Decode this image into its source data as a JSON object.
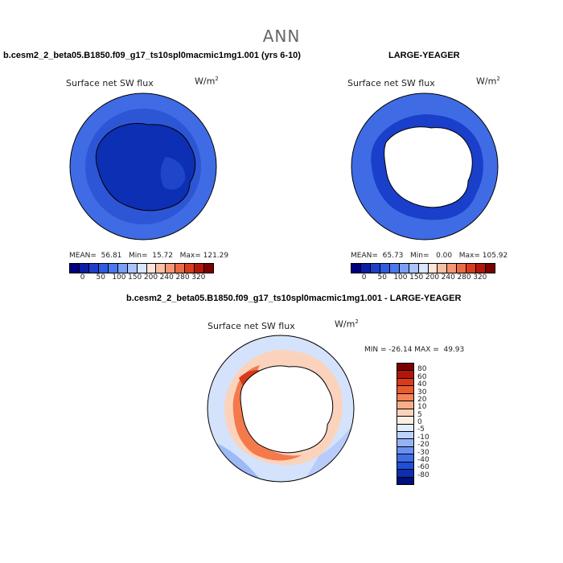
{
  "title": "ANN",
  "panels": [
    {
      "case": "b.cesm2_2_beta05.B1850.f09_g17_ts10spl0macmic1mg1.001 (yrs 6-10)",
      "variable": "Surface net SW flux",
      "units_base": "W/m",
      "units_exp": "2",
      "mean_label": "MEAN=",
      "mean": "56.81",
      "min_label": "Min=",
      "min": "15.72",
      "max_label": "Max=",
      "max": "121.29"
    },
    {
      "case": "LARGE-YEAGER",
      "variable": "Surface net SW flux",
      "units_base": "W/m",
      "units_exp": "2",
      "mean_label": "MEAN=",
      "mean": "65.73",
      "min_label": "Min=",
      "min": "0.00",
      "max_label": "Max=",
      "max": "105.92"
    },
    {
      "case": "b.cesm2_2_beta05.B1850.f09_g17_ts10spl0macmic1mg1.001 - LARGE-YEAGER",
      "variable": "Surface net SW flux",
      "units_base": "W/m",
      "units_exp": "2",
      "minmax": "MIN = -26.14 MAX =  49.93"
    }
  ],
  "colorbar_top": {
    "colors": [
      "#00007f",
      "#0b1fa6",
      "#1e3fc8",
      "#2f5be0",
      "#4a78ee",
      "#7a9ff5",
      "#a9c4f9",
      "#d9e6fc",
      "#fde4d8",
      "#f9bfa4",
      "#f39774",
      "#ea6a44",
      "#d83a1c",
      "#b31608",
      "#7a0000"
    ],
    "labels": [
      "0",
      "50",
      "100",
      "150",
      "200",
      "240",
      "280",
      "320"
    ]
  },
  "colorbar_diff": {
    "colors": [
      "#7a0000",
      "#b31608",
      "#d83a1c",
      "#ec5a2c",
      "#f48458",
      "#f8ac87",
      "#fbd3bd",
      "#fdeee4",
      "#e2ecfd",
      "#bdd1fa",
      "#93b3f6",
      "#6a91f0",
      "#3f6de6",
      "#1f4fd6",
      "#0c2fb0",
      "#00107a"
    ],
    "labels": [
      "80",
      "60",
      "40",
      "30",
      "20",
      "10",
      "5",
      "0",
      "-5",
      "-10",
      "-20",
      "-30",
      "-40",
      "-60",
      "-80"
    ]
  },
  "maps": {
    "model": {
      "ocean_color": "#3f6ce4",
      "inner_ring_color": "#2d56d6",
      "land_color": "#0d2fb4",
      "land_shade": "#1f45c8"
    },
    "obs": {
      "ocean_color": "#3f6ce4",
      "ring_color": "#1a3fca",
      "land_color": "#ffffff"
    },
    "diff": {
      "ocean_color": "#d4e3fb",
      "pos_color": "#f47a4c",
      "neg_color": "#9db9f6",
      "land_color": "#ffffff"
    }
  }
}
